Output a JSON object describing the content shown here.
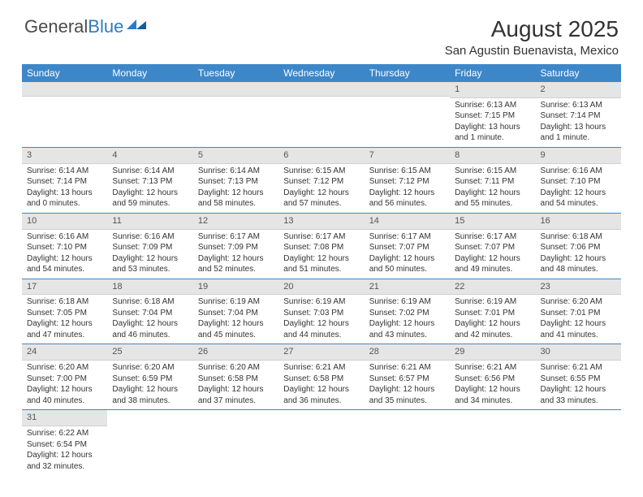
{
  "logo": {
    "part1": "General",
    "part2": "Blue"
  },
  "title": "August 2025",
  "location": "San Agustin Buenavista, Mexico",
  "colors": {
    "header_bg": "#3d87c9",
    "header_text": "#ffffff",
    "daynum_bg": "#e5e5e5",
    "border": "#3d87c9",
    "logo_gray": "#4a4a4a",
    "logo_blue": "#2f7bbf"
  },
  "weekdays": [
    "Sunday",
    "Monday",
    "Tuesday",
    "Wednesday",
    "Thursday",
    "Friday",
    "Saturday"
  ],
  "weeks": [
    [
      null,
      null,
      null,
      null,
      null,
      {
        "n": "1",
        "sr": "Sunrise: 6:13 AM",
        "ss": "Sunset: 7:15 PM",
        "d1": "Daylight: 13 hours",
        "d2": "and 1 minute."
      },
      {
        "n": "2",
        "sr": "Sunrise: 6:13 AM",
        "ss": "Sunset: 7:14 PM",
        "d1": "Daylight: 13 hours",
        "d2": "and 1 minute."
      }
    ],
    [
      {
        "n": "3",
        "sr": "Sunrise: 6:14 AM",
        "ss": "Sunset: 7:14 PM",
        "d1": "Daylight: 13 hours",
        "d2": "and 0 minutes."
      },
      {
        "n": "4",
        "sr": "Sunrise: 6:14 AM",
        "ss": "Sunset: 7:13 PM",
        "d1": "Daylight: 12 hours",
        "d2": "and 59 minutes."
      },
      {
        "n": "5",
        "sr": "Sunrise: 6:14 AM",
        "ss": "Sunset: 7:13 PM",
        "d1": "Daylight: 12 hours",
        "d2": "and 58 minutes."
      },
      {
        "n": "6",
        "sr": "Sunrise: 6:15 AM",
        "ss": "Sunset: 7:12 PM",
        "d1": "Daylight: 12 hours",
        "d2": "and 57 minutes."
      },
      {
        "n": "7",
        "sr": "Sunrise: 6:15 AM",
        "ss": "Sunset: 7:12 PM",
        "d1": "Daylight: 12 hours",
        "d2": "and 56 minutes."
      },
      {
        "n": "8",
        "sr": "Sunrise: 6:15 AM",
        "ss": "Sunset: 7:11 PM",
        "d1": "Daylight: 12 hours",
        "d2": "and 55 minutes."
      },
      {
        "n": "9",
        "sr": "Sunrise: 6:16 AM",
        "ss": "Sunset: 7:10 PM",
        "d1": "Daylight: 12 hours",
        "d2": "and 54 minutes."
      }
    ],
    [
      {
        "n": "10",
        "sr": "Sunrise: 6:16 AM",
        "ss": "Sunset: 7:10 PM",
        "d1": "Daylight: 12 hours",
        "d2": "and 54 minutes."
      },
      {
        "n": "11",
        "sr": "Sunrise: 6:16 AM",
        "ss": "Sunset: 7:09 PM",
        "d1": "Daylight: 12 hours",
        "d2": "and 53 minutes."
      },
      {
        "n": "12",
        "sr": "Sunrise: 6:17 AM",
        "ss": "Sunset: 7:09 PM",
        "d1": "Daylight: 12 hours",
        "d2": "and 52 minutes."
      },
      {
        "n": "13",
        "sr": "Sunrise: 6:17 AM",
        "ss": "Sunset: 7:08 PM",
        "d1": "Daylight: 12 hours",
        "d2": "and 51 minutes."
      },
      {
        "n": "14",
        "sr": "Sunrise: 6:17 AM",
        "ss": "Sunset: 7:07 PM",
        "d1": "Daylight: 12 hours",
        "d2": "and 50 minutes."
      },
      {
        "n": "15",
        "sr": "Sunrise: 6:17 AM",
        "ss": "Sunset: 7:07 PM",
        "d1": "Daylight: 12 hours",
        "d2": "and 49 minutes."
      },
      {
        "n": "16",
        "sr": "Sunrise: 6:18 AM",
        "ss": "Sunset: 7:06 PM",
        "d1": "Daylight: 12 hours",
        "d2": "and 48 minutes."
      }
    ],
    [
      {
        "n": "17",
        "sr": "Sunrise: 6:18 AM",
        "ss": "Sunset: 7:05 PM",
        "d1": "Daylight: 12 hours",
        "d2": "and 47 minutes."
      },
      {
        "n": "18",
        "sr": "Sunrise: 6:18 AM",
        "ss": "Sunset: 7:04 PM",
        "d1": "Daylight: 12 hours",
        "d2": "and 46 minutes."
      },
      {
        "n": "19",
        "sr": "Sunrise: 6:19 AM",
        "ss": "Sunset: 7:04 PM",
        "d1": "Daylight: 12 hours",
        "d2": "and 45 minutes."
      },
      {
        "n": "20",
        "sr": "Sunrise: 6:19 AM",
        "ss": "Sunset: 7:03 PM",
        "d1": "Daylight: 12 hours",
        "d2": "and 44 minutes."
      },
      {
        "n": "21",
        "sr": "Sunrise: 6:19 AM",
        "ss": "Sunset: 7:02 PM",
        "d1": "Daylight: 12 hours",
        "d2": "and 43 minutes."
      },
      {
        "n": "22",
        "sr": "Sunrise: 6:19 AM",
        "ss": "Sunset: 7:01 PM",
        "d1": "Daylight: 12 hours",
        "d2": "and 42 minutes."
      },
      {
        "n": "23",
        "sr": "Sunrise: 6:20 AM",
        "ss": "Sunset: 7:01 PM",
        "d1": "Daylight: 12 hours",
        "d2": "and 41 minutes."
      }
    ],
    [
      {
        "n": "24",
        "sr": "Sunrise: 6:20 AM",
        "ss": "Sunset: 7:00 PM",
        "d1": "Daylight: 12 hours",
        "d2": "and 40 minutes."
      },
      {
        "n": "25",
        "sr": "Sunrise: 6:20 AM",
        "ss": "Sunset: 6:59 PM",
        "d1": "Daylight: 12 hours",
        "d2": "and 38 minutes."
      },
      {
        "n": "26",
        "sr": "Sunrise: 6:20 AM",
        "ss": "Sunset: 6:58 PM",
        "d1": "Daylight: 12 hours",
        "d2": "and 37 minutes."
      },
      {
        "n": "27",
        "sr": "Sunrise: 6:21 AM",
        "ss": "Sunset: 6:58 PM",
        "d1": "Daylight: 12 hours",
        "d2": "and 36 minutes."
      },
      {
        "n": "28",
        "sr": "Sunrise: 6:21 AM",
        "ss": "Sunset: 6:57 PM",
        "d1": "Daylight: 12 hours",
        "d2": "and 35 minutes."
      },
      {
        "n": "29",
        "sr": "Sunrise: 6:21 AM",
        "ss": "Sunset: 6:56 PM",
        "d1": "Daylight: 12 hours",
        "d2": "and 34 minutes."
      },
      {
        "n": "30",
        "sr": "Sunrise: 6:21 AM",
        "ss": "Sunset: 6:55 PM",
        "d1": "Daylight: 12 hours",
        "d2": "and 33 minutes."
      }
    ],
    [
      {
        "n": "31",
        "sr": "Sunrise: 6:22 AM",
        "ss": "Sunset: 6:54 PM",
        "d1": "Daylight: 12 hours",
        "d2": "and 32 minutes."
      },
      null,
      null,
      null,
      null,
      null,
      null
    ]
  ]
}
